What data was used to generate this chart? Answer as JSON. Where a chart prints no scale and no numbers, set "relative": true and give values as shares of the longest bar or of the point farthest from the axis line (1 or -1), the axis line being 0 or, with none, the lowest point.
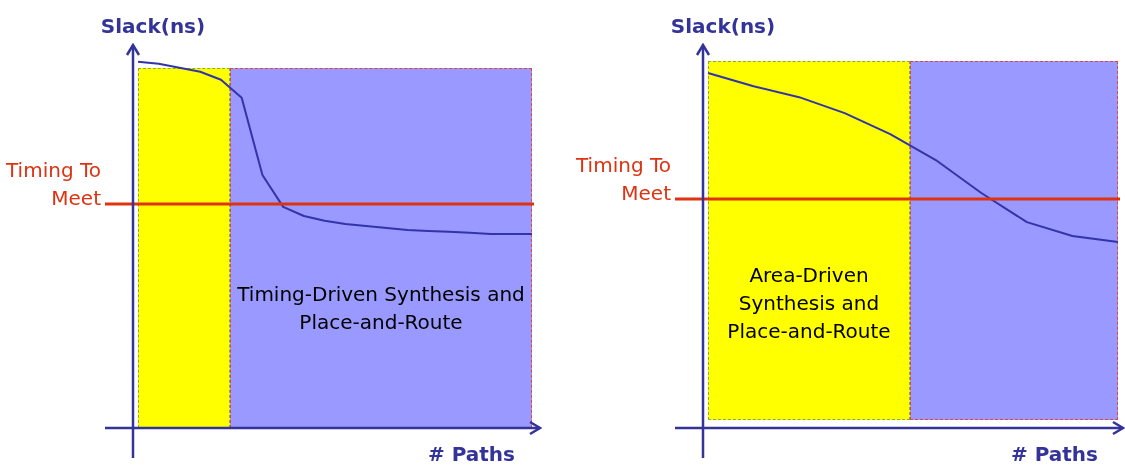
{
  "chart_data": [
    {
      "type": "line",
      "relative": true,
      "ylabel": "Slack(ns)",
      "xlabel": "# Paths",
      "legend": false,
      "marker": "none",
      "categories": [
        null,
        null,
        null,
        null,
        null,
        null,
        null,
        null,
        null,
        null,
        null,
        null,
        null,
        null,
        null,
        null,
        null,
        null,
        null,
        null
      ],
      "annotations": [
        "Timing-Driven Synthesis and Place-and-Route"
      ],
      "ref_lines": [
        {
          "axis": "y",
          "value": 0.612,
          "label": "Timing To Meet",
          "color": "#dd3311"
        }
      ],
      "series": [
        {
          "color": "#3333aa",
          "values": [
            1,
            0.995,
            0.984,
            0.973,
            0.951,
            0.902,
            0.691,
            0.604,
            0.579,
            0.566,
            0.557,
            0.552,
            0.546,
            0.541,
            0.538,
            0.536,
            0.533,
            0.53,
            0.53,
            0.53
          ]
        }
      ]
    },
    {
      "type": "line",
      "relative": true,
      "ylabel": "Slack(ns)",
      "xlabel": "# Paths",
      "legend": false,
      "marker": "none",
      "categories": [
        null,
        null,
        null,
        null,
        null,
        null,
        null,
        null,
        null,
        null
      ],
      "annotations": [
        "Area-Driven Synthesis and Place-and-Route"
      ],
      "ref_lines": [
        {
          "axis": "y",
          "value": 0.645,
          "label": "Timing To Meet",
          "color": "#dd3311"
        }
      ],
      "series": [
        {
          "color": "#3333aa",
          "values": [
            1,
            0.963,
            0.932,
            0.887,
            0.828,
            0.755,
            0.662,
            0.58,
            0.541,
            0.524
          ]
        }
      ]
    }
  ]
}
